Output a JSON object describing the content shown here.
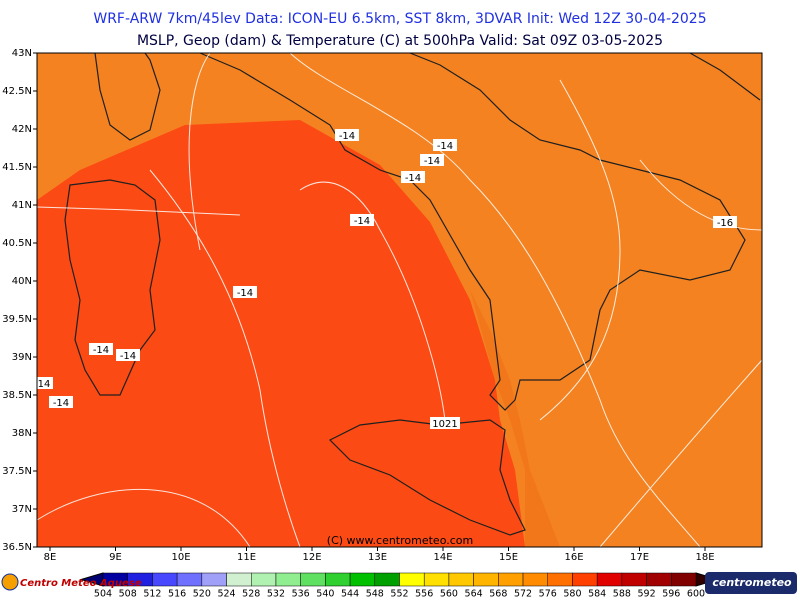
{
  "header": {
    "line1": "WRF-ARW 7km/45lev   Data: ICON-EU 6.5km, SST 8km, 3DVAR   Init: Wed 12Z 30-04-2025",
    "line2": "MSLP, Geop (dam) & Temperature (C) at 500hPa  Valid: Sat 09Z 03-05-2025"
  },
  "lat_labels": [
    "43N",
    "42.5N",
    "42N",
    "41.5N",
    "41N",
    "40.5N",
    "40N",
    "39.5N",
    "39N",
    "38.5N",
    "38N",
    "37.5N",
    "37N",
    "36.5N"
  ],
  "lon_labels": [
    "8E",
    "9E",
    "10E",
    "11E",
    "12E",
    "13E",
    "14E",
    "15E",
    "16E",
    "17E",
    "18E"
  ],
  "contour_labels": [
    "-14",
    "-14",
    "-14",
    "-14",
    "-14",
    "-14",
    "-14",
    "-14",
    "-14",
    "14",
    "-16",
    "1021"
  ],
  "copyright": "(C) www.centrometeo.com",
  "colorbar": {
    "labels": [
      504,
      508,
      512,
      516,
      520,
      524,
      528,
      532,
      536,
      540,
      544,
      548,
      552,
      556,
      560,
      564,
      568,
      572,
      576,
      580,
      584,
      588,
      592,
      596,
      600
    ]
  },
  "logo_left": "Centro Meteo Aquese",
  "logo_right": "centrometeo"
}
